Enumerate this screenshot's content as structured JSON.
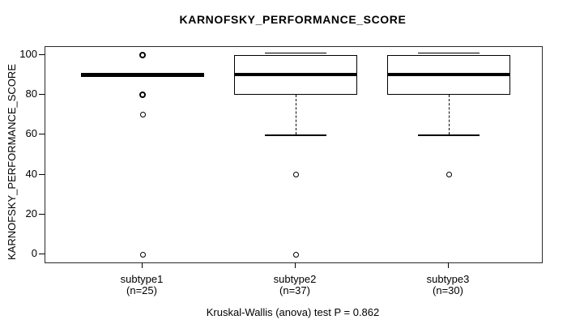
{
  "chart_data": {
    "type": "boxplot",
    "title": "KARNOFSKY_PERFORMANCE_SCORE",
    "ylabel": "KARNOFSKY_PERFORMANCE_SCORE",
    "xlabel": "",
    "caption": "Kruskal-Wallis (anova) test P = 0.862",
    "ylim": [
      0,
      100
    ],
    "yticks": [
      0,
      20,
      40,
      60,
      80,
      100
    ],
    "grid": false,
    "legend_position": "none",
    "colors": {
      "line": "#000000",
      "median": "#000000",
      "background": "#ffffff",
      "box_fill": "transparent"
    },
    "groups": [
      {
        "label": "subtype1",
        "sublabel": "(n=25)",
        "n": 25,
        "q1": 90,
        "median": 90,
        "q3": 90,
        "whisker_low": 90,
        "whisker_high": 90,
        "outliers": [
          100,
          80,
          70,
          0
        ],
        "emphasized_outliers": [
          100,
          80
        ]
      },
      {
        "label": "subtype2",
        "sublabel": "(n=37)",
        "n": 37,
        "q1": 80,
        "median": 90,
        "q3": 100,
        "whisker_low": 60,
        "whisker_high": 100,
        "outliers": [
          40,
          0
        ],
        "emphasized_outliers": []
      },
      {
        "label": "subtype3",
        "sublabel": "(n=30)",
        "n": 30,
        "q1": 80,
        "median": 90,
        "q3": 100,
        "whisker_low": 60,
        "whisker_high": 100,
        "outliers": [
          40
        ],
        "emphasized_outliers": []
      }
    ]
  }
}
